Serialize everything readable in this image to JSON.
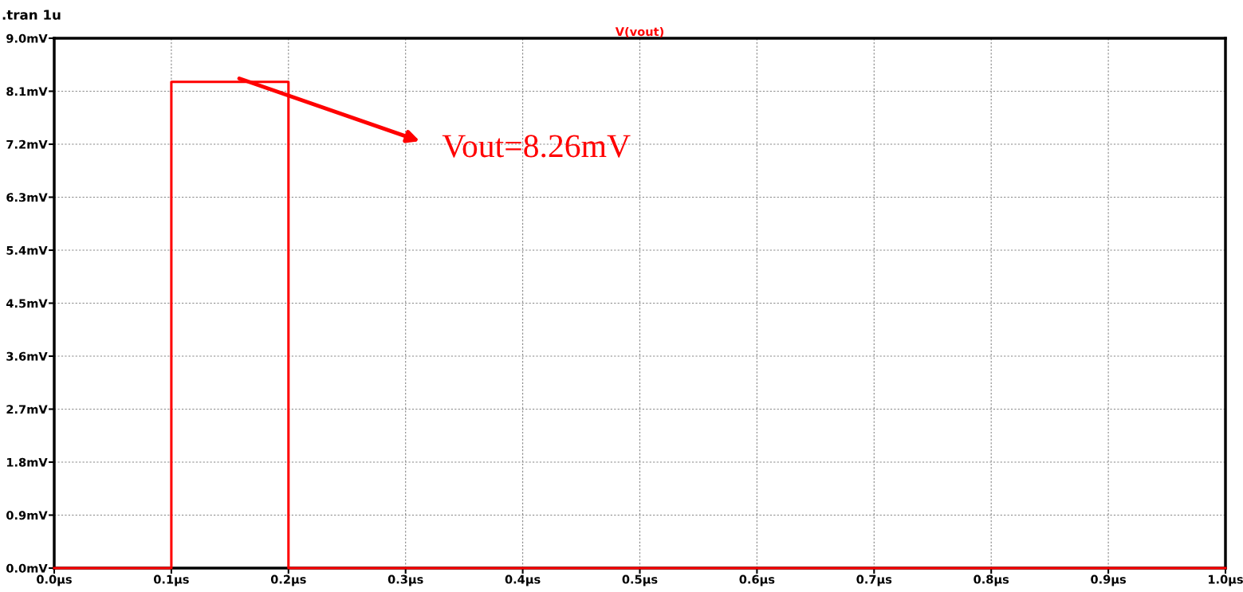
{
  "chart_data": {
    "type": "line",
    "title": "V(vout)",
    "x": [
      0,
      0.1,
      0.1,
      0.2,
      0.2,
      1.0
    ],
    "series": [
      {
        "color": "#ff0000",
        "values": [
          0,
          0,
          8.26,
          8.26,
          0,
          0
        ]
      }
    ],
    "xlim": [
      0,
      1.0
    ],
    "ylim": [
      0,
      9.0
    ],
    "xticks": [
      {
        "value": 0,
        "label": "0.0µs"
      },
      {
        "value": 0.1,
        "label": "0.1µs"
      },
      {
        "value": 0.2,
        "label": "0.2µs"
      },
      {
        "value": 0.3,
        "label": "0.3µs"
      },
      {
        "value": 0.4,
        "label": "0.4µs"
      },
      {
        "value": 0.5,
        "label": "0.5µs"
      },
      {
        "value": 0.6,
        "label": "0.6µs"
      },
      {
        "value": 0.7,
        "label": "0.7µs"
      },
      {
        "value": 0.8,
        "label": "0.8µs"
      },
      {
        "value": 0.9,
        "label": "0.9µs"
      },
      {
        "value": 1.0,
        "label": "1.0µs"
      }
    ],
    "yticks": [
      {
        "value": 0,
        "label": "0.0mV"
      },
      {
        "value": 0.9,
        "label": "0.9mV"
      },
      {
        "value": 1.8,
        "label": "1.8mV"
      },
      {
        "value": 2.7,
        "label": "2.7mV"
      },
      {
        "value": 3.6,
        "label": "3.6mV"
      },
      {
        "value": 4.5,
        "label": "4.5mV"
      },
      {
        "value": 5.4,
        "label": "5.4mV"
      },
      {
        "value": 6.3,
        "label": "6.3mV"
      },
      {
        "value": 7.2,
        "label": "7.2mV"
      },
      {
        "value": 8.1,
        "label": "8.1mV"
      },
      {
        "value": 9.0,
        "label": "9.0mV"
      }
    ],
    "grid": true,
    "line_style": "solid",
    "marker": "none",
    "annotations": [
      ".tran 1u",
      "Vout=8.26mV"
    ]
  }
}
